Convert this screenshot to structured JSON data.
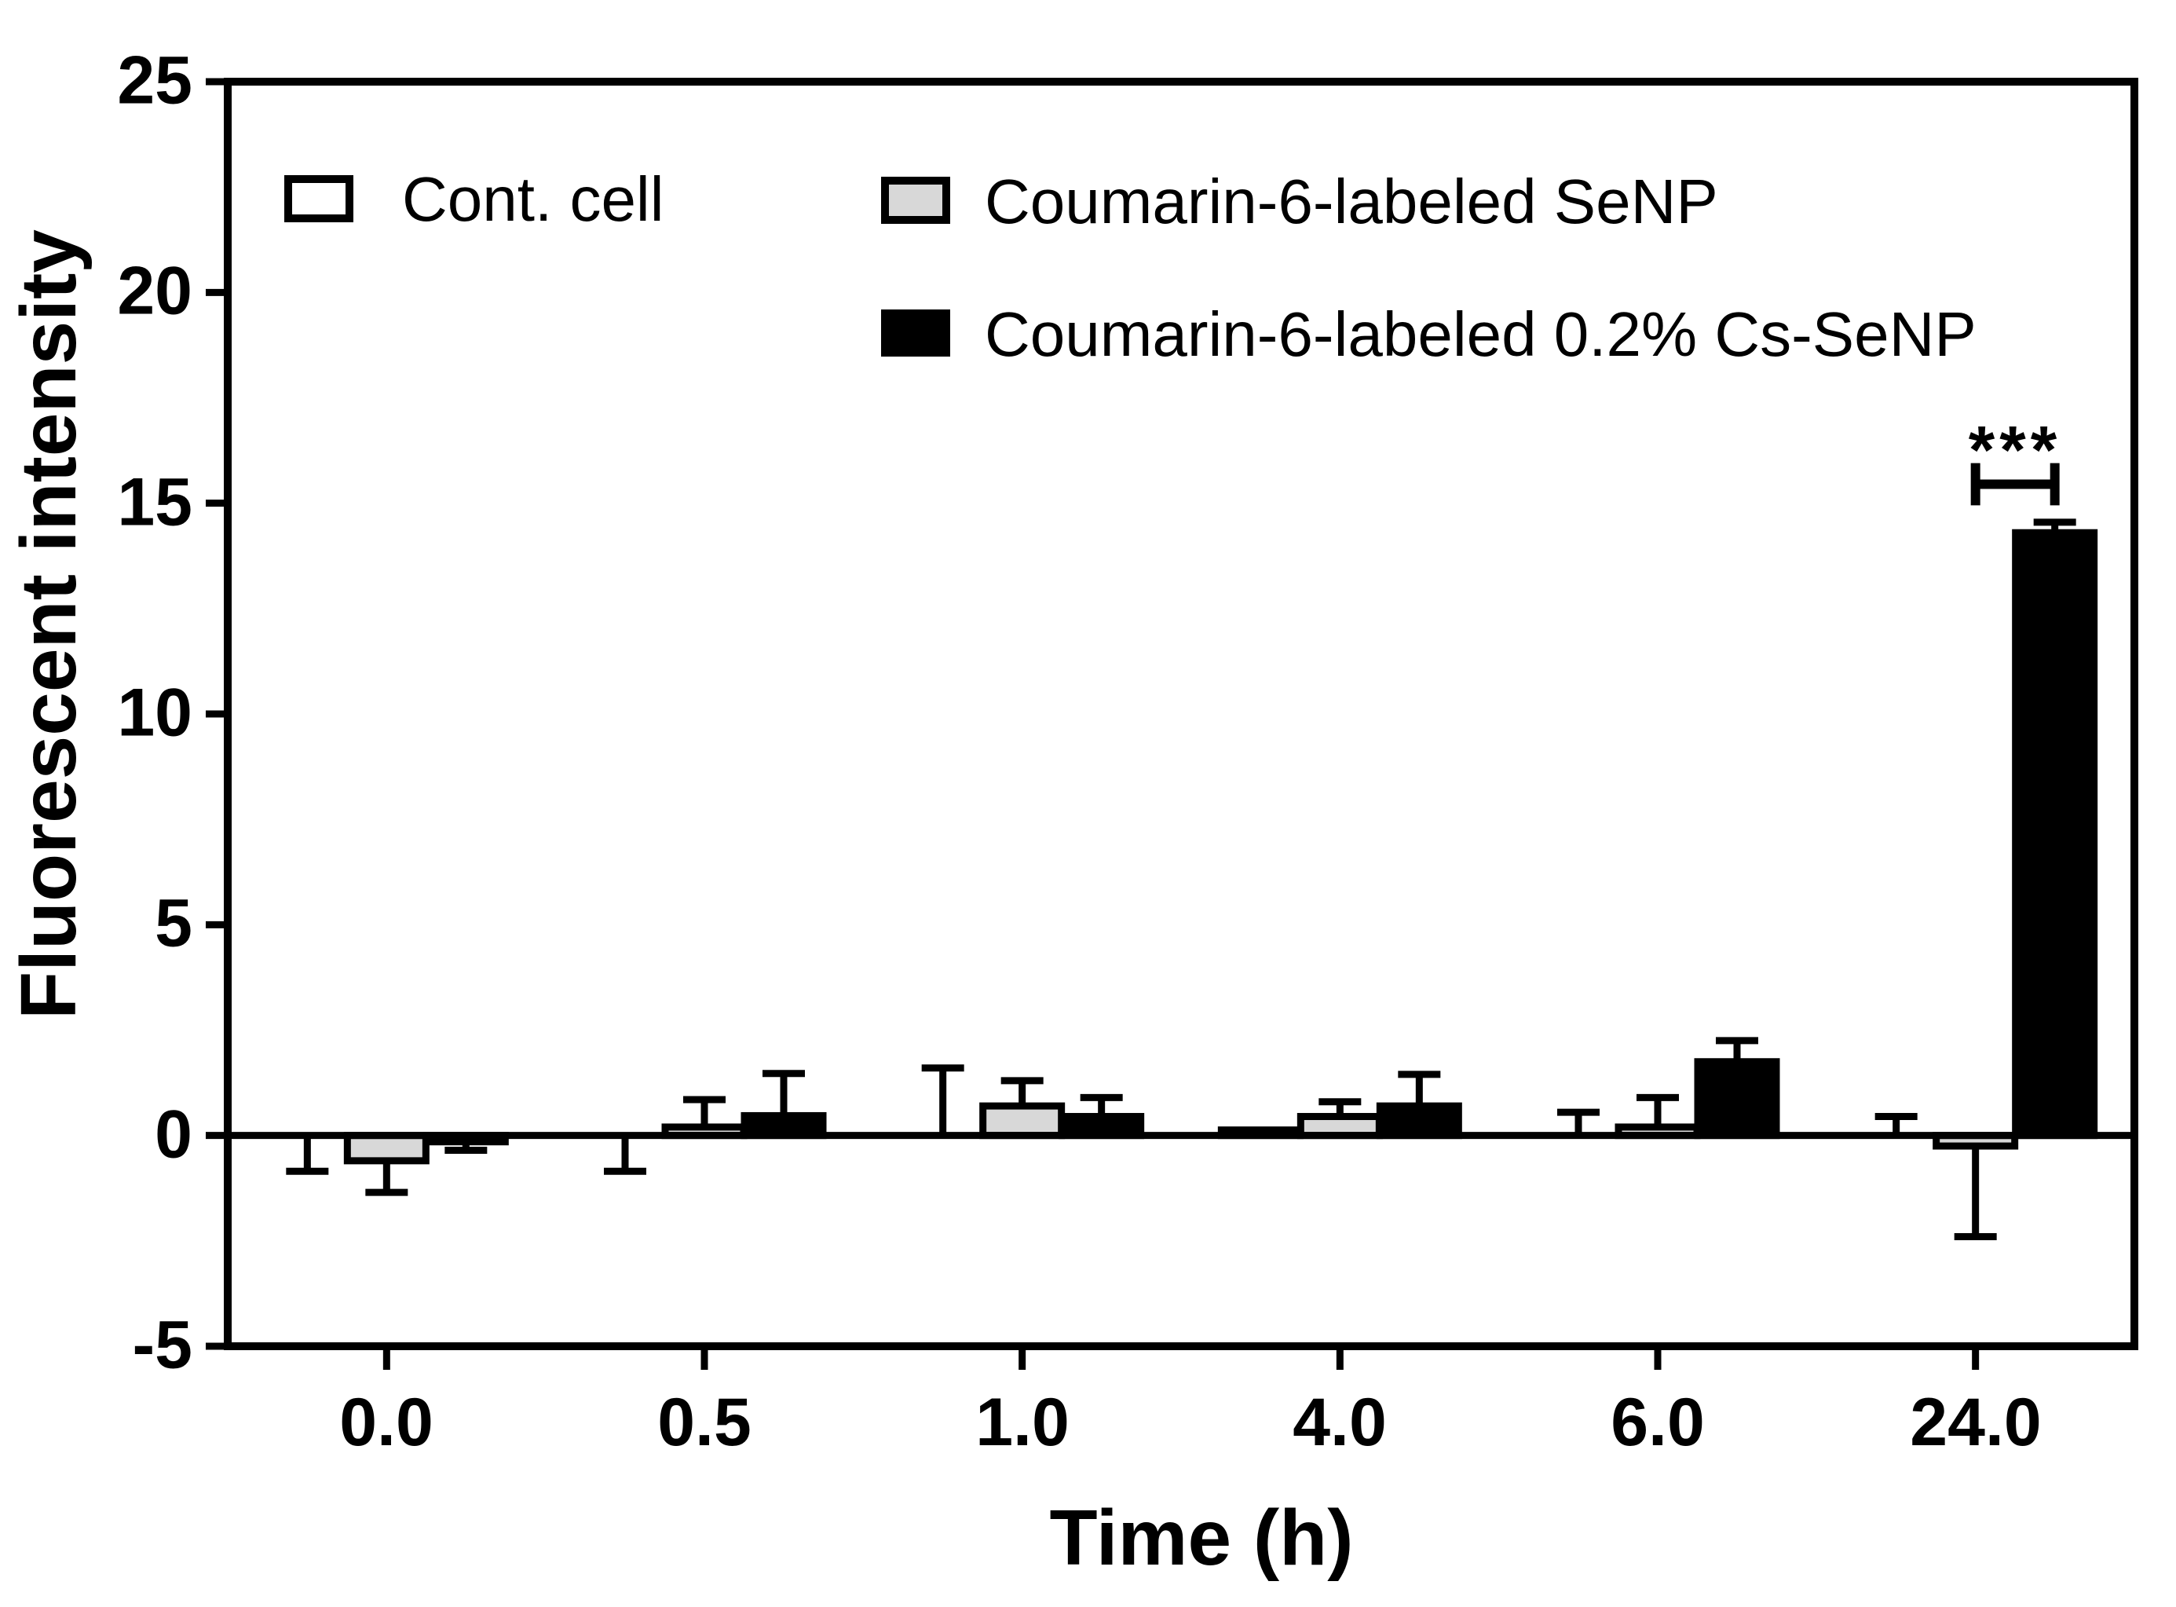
{
  "figure": {
    "background": "#ffffff",
    "accent": "#000000"
  },
  "chart_data": {
    "type": "bar",
    "title": "",
    "xlabel": "Time (h)",
    "ylabel": "Fluorescent intensity",
    "categories": [
      "0.0",
      "0.5",
      "1.0",
      "4.0",
      "6.0",
      "24.0"
    ],
    "y_axis": {
      "min": -5,
      "max": 25,
      "tick_step": 5,
      "tick_labels": [
        "25",
        "20",
        "15",
        "10",
        "5",
        "0",
        "-5"
      ]
    },
    "grid": "off",
    "legend_position": "top-left-inside",
    "series": [
      {
        "name": "Cont. cell",
        "fill": "#ffffff",
        "outline": "#000000",
        "values": [
          0,
          0,
          0.05,
          0.13,
          0.05,
          0
        ],
        "errors": [
          -0.85,
          -0.85,
          1.55,
          0,
          0.5,
          0.45
        ]
      },
      {
        "name": "Coumarin-6-labeled SeNP",
        "fill": "#d8d8d8",
        "outline": "#000000",
        "values": [
          -0.6,
          0.2,
          0.7,
          0.45,
          0.2,
          -0.25
        ],
        "errors": [
          -0.75,
          0.65,
          0.6,
          0.35,
          0.7,
          -2.15
        ]
      },
      {
        "name": "Coumarin-6-labeled 0.2% Cs-SeNP",
        "fill": "#000000",
        "outline": "#000000",
        "values": [
          -0.15,
          0.47,
          0.45,
          0.7,
          1.75,
          14.3
        ],
        "errors": [
          -0.2,
          1.0,
          0.45,
          0.75,
          0.5,
          0.25
        ]
      }
    ],
    "significance": {
      "label": "***",
      "category": "24.0",
      "between_series": [
        "Coumarin-6-labeled SeNP",
        "Coumarin-6-labeled 0.2% Cs-SeNP"
      ],
      "bracket_y": 15.45,
      "serif_half_height": 0.5
    }
  }
}
